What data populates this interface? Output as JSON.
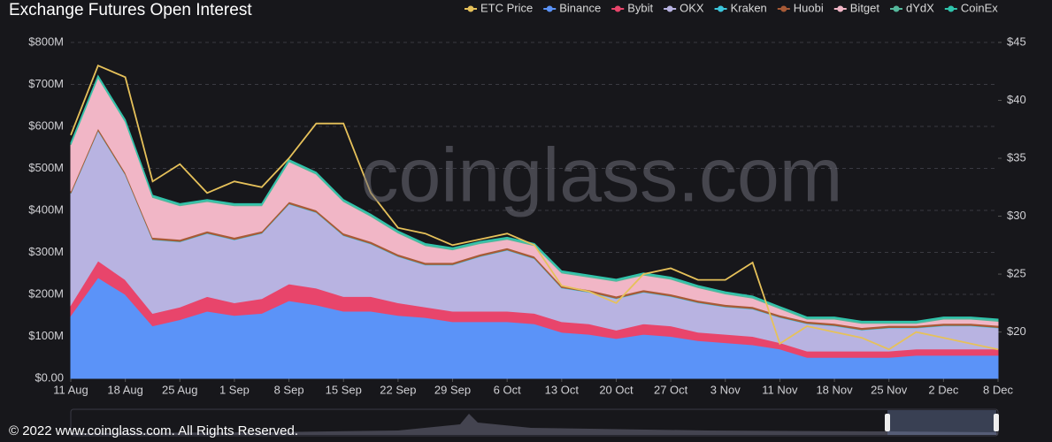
{
  "chart_data": {
    "type": "stacked-area",
    "title": "Exchange  Futures Open Interest",
    "watermark": "coinglass.com",
    "footer": "© 2022 www.coinglass.com. All Rights Reserved.",
    "categories": [
      "11 Aug",
      null,
      "18 Aug",
      null,
      "25 Aug",
      null,
      "1 Sep",
      null,
      "8 Sep",
      null,
      "15 Sep",
      null,
      "22 Sep",
      null,
      "29 Sep",
      null,
      "6 Oct",
      null,
      "13 Oct",
      null,
      "20 Oct",
      null,
      "27 Oct",
      null,
      "3 Nov",
      null,
      "11 Nov",
      null,
      "18 Nov",
      null,
      "25 Nov",
      null,
      "2 Dec",
      null,
      "8 Dec"
    ],
    "ylim": [
      0,
      800000000
    ],
    "yticks": [
      {
        "value": 0,
        "label": "$0.00"
      },
      {
        "value": 100000000,
        "label": "$100M"
      },
      {
        "value": 200000000,
        "label": "$200M"
      },
      {
        "value": 300000000,
        "label": "$300M"
      },
      {
        "value": 400000000,
        "label": "$400M"
      },
      {
        "value": 500000000,
        "label": "$500M"
      },
      {
        "value": 600000000,
        "label": "$600M"
      },
      {
        "value": 700000000,
        "label": "$700M"
      },
      {
        "value": 800000000,
        "label": "$800M"
      }
    ],
    "y2lim": [
      16,
      45
    ],
    "y2ticks": [
      {
        "value": 20,
        "label": "$20"
      },
      {
        "value": 25,
        "label": "$25"
      },
      {
        "value": 30,
        "label": "$30"
      },
      {
        "value": 35,
        "label": "$35"
      },
      {
        "value": 40,
        "label": "$40"
      },
      {
        "value": 45,
        "label": "$45"
      }
    ],
    "grid": true,
    "legend_position": "top-right",
    "series": [
      {
        "name": "ETC Price",
        "color": "#e6c15a",
        "axis": "y2",
        "kind": "line",
        "values": [
          37,
          43,
          42,
          33,
          34.5,
          32,
          33,
          32.5,
          35,
          38,
          38,
          32,
          29,
          28.5,
          27.5,
          28,
          28.5,
          27.5,
          24,
          23.5,
          22.5,
          25,
          25.5,
          24.5,
          24.5,
          26,
          19,
          20.5,
          20,
          19.5,
          18.5,
          20,
          19.5,
          19,
          18.5
        ]
      },
      {
        "name": "Binance",
        "color": "#5b93f8",
        "values": [
          150000000,
          240000000,
          200000000,
          125000000,
          140000000,
          160000000,
          150000000,
          155000000,
          185000000,
          175000000,
          160000000,
          160000000,
          150000000,
          145000000,
          135000000,
          135000000,
          135000000,
          130000000,
          110000000,
          105000000,
          95000000,
          105000000,
          100000000,
          90000000,
          85000000,
          80000000,
          70000000,
          50000000,
          50000000,
          50000000,
          50000000,
          55000000,
          55000000,
          55000000,
          55000000
        ]
      },
      {
        "name": "Bybit",
        "color": "#e8456b",
        "values": [
          25000000,
          40000000,
          35000000,
          30000000,
          30000000,
          35000000,
          30000000,
          35000000,
          40000000,
          40000000,
          35000000,
          35000000,
          30000000,
          25000000,
          25000000,
          25000000,
          25000000,
          25000000,
          25000000,
          25000000,
          20000000,
          25000000,
          25000000,
          20000000,
          20000000,
          20000000,
          15000000,
          15000000,
          15000000,
          15000000,
          15000000,
          15000000,
          15000000,
          15000000,
          15000000
        ]
      },
      {
        "name": "OKX",
        "color": "#b8b3e1",
        "values": [
          265000000,
          310000000,
          250000000,
          175000000,
          155000000,
          150000000,
          150000000,
          155000000,
          190000000,
          180000000,
          145000000,
          125000000,
          110000000,
          100000000,
          110000000,
          130000000,
          145000000,
          130000000,
          80000000,
          75000000,
          75000000,
          75000000,
          70000000,
          70000000,
          65000000,
          65000000,
          60000000,
          65000000,
          60000000,
          50000000,
          55000000,
          50000000,
          55000000,
          55000000,
          50000000
        ]
      },
      {
        "name": "Kraken",
        "color": "#3cc6dc",
        "values": [
          1000000,
          1000000,
          1000000,
          1000000,
          1000000,
          1000000,
          1000000,
          1000000,
          1000000,
          1000000,
          1000000,
          1000000,
          1000000,
          1000000,
          1000000,
          1000000,
          1000000,
          1000000,
          1000000,
          1000000,
          1000000,
          1000000,
          1000000,
          1000000,
          1000000,
          1000000,
          1000000,
          1000000,
          1000000,
          1000000,
          1000000,
          1000000,
          1000000,
          1000000,
          1000000
        ]
      },
      {
        "name": "Huobi",
        "color": "#a85a36",
        "values": [
          5000000,
          5000000,
          5000000,
          5000000,
          5000000,
          5000000,
          5000000,
          5000000,
          5000000,
          5000000,
          5000000,
          5000000,
          5000000,
          5000000,
          5000000,
          5000000,
          5000000,
          5000000,
          5000000,
          5000000,
          5000000,
          5000000,
          5000000,
          5000000,
          5000000,
          5000000,
          5000000,
          5000000,
          5000000,
          5000000,
          5000000,
          5000000,
          5000000,
          5000000,
          5000000
        ]
      },
      {
        "name": "Bitget",
        "color": "#f1b6c6",
        "values": [
          110000000,
          120000000,
          120000000,
          95000000,
          80000000,
          70000000,
          75000000,
          60000000,
          95000000,
          85000000,
          75000000,
          60000000,
          50000000,
          40000000,
          30000000,
          25000000,
          20000000,
          25000000,
          30000000,
          30000000,
          35000000,
          35000000,
          35000000,
          30000000,
          25000000,
          20000000,
          15000000,
          5000000,
          10000000,
          10000000,
          5000000,
          5000000,
          10000000,
          10000000,
          10000000
        ]
      },
      {
        "name": "dYdX",
        "color": "#55b89c",
        "values": [
          3000000,
          3000000,
          3000000,
          3000000,
          3000000,
          3000000,
          3000000,
          3000000,
          3000000,
          3000000,
          3000000,
          3000000,
          3000000,
          3000000,
          3000000,
          3000000,
          3000000,
          3000000,
          3000000,
          3000000,
          3000000,
          3000000,
          3000000,
          3000000,
          3000000,
          3000000,
          3000000,
          3000000,
          3000000,
          3000000,
          3000000,
          3000000,
          3000000,
          3000000,
          3000000
        ]
      },
      {
        "name": "CoinEx",
        "color": "#2fc4ac",
        "values": [
          2000000,
          2000000,
          2000000,
          2000000,
          2000000,
          2000000,
          2000000,
          2000000,
          2000000,
          2000000,
          2000000,
          2000000,
          2000000,
          2000000,
          2000000,
          2000000,
          2000000,
          2000000,
          2000000,
          2000000,
          2000000,
          2000000,
          2000000,
          2000000,
          2000000,
          2000000,
          2000000,
          2000000,
          2000000,
          2000000,
          2000000,
          2000000,
          2000000,
          2000000,
          2000000
        ]
      }
    ]
  }
}
